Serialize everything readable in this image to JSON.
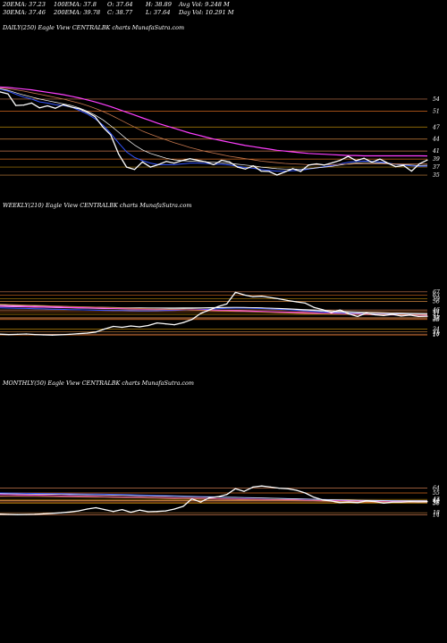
{
  "header": {
    "ema20": "20EMA: 37.23",
    "ema100": "100EMA: 37.8",
    "open": "O: 37.64",
    "high": "H: 38.89",
    "avg_vol": "Avg Vol: 9.248  M",
    "ema30": "30EMA: 37.46",
    "ema200": "200EMA: 39.78",
    "close": "C: 38.77",
    "low": "L: 37.64",
    "day_vol": "Day Vol: 10.291 M"
  },
  "chart_data": [
    {
      "type": "line",
      "title": "DAILY(250) Eagle  View  CENTRALBK charts MunafaSutra.com",
      "ylim": [
        33,
        58
      ],
      "y_ticks": [
        "54",
        "51",
        "47",
        "44",
        "41",
        "39",
        "37",
        "35"
      ],
      "y_tick_values": [
        54,
        51,
        47,
        44,
        41,
        39,
        37,
        35
      ],
      "series": [
        {
          "name": "",
          "color": "#ffffff",
          "values": [
            55.8,
            55.3,
            52.4,
            52.5,
            53.0,
            51.8,
            52.3,
            51.7,
            52.6,
            52.0,
            51.6,
            50.7,
            49.6,
            47.0,
            45.0,
            40.2,
            37.0,
            36.4,
            38.3,
            37.0,
            37.6,
            38.4,
            38.0,
            38.6,
            39.1,
            38.7,
            38.3,
            37.6,
            38.7,
            38.3,
            37.0,
            36.5,
            37.3,
            36.0,
            35.9,
            35.0,
            35.8,
            36.6,
            35.9,
            37.5,
            37.8,
            37.5,
            38.1,
            38.7,
            39.7,
            38.6,
            39.2,
            38.2,
            39.0,
            38.0,
            37.1,
            37.4,
            36.0,
            37.8,
            38.77
          ]
        },
        {
          "name": "",
          "color": "#3355ff",
          "values": [
            56.5,
            56.0,
            55.2,
            54.5,
            54.0,
            53.3,
            53.0,
            52.6,
            52.4,
            52.0,
            51.2,
            50.3,
            49.1,
            47.5,
            45.4,
            43.0,
            40.8,
            39.4,
            38.6,
            38.0,
            37.6,
            37.6,
            37.6,
            37.8,
            38.0,
            38.0,
            37.9,
            37.7,
            37.7,
            37.5,
            37.2,
            36.9,
            36.7,
            36.4,
            36.2,
            36.0,
            36.0,
            36.1,
            36.2,
            36.5,
            36.8,
            37.1,
            37.4,
            37.8,
            38.2,
            38.4,
            38.5,
            38.4,
            38.3,
            38.0,
            37.7,
            37.5,
            37.3,
            37.2,
            37.23
          ]
        },
        {
          "name": "",
          "color": "#ffffff",
          "values": [
            56.6,
            56.2,
            55.6,
            55.0,
            54.5,
            54.0,
            53.6,
            53.2,
            52.8,
            52.4,
            51.8,
            51.0,
            50.0,
            48.8,
            47.3,
            45.7,
            44.0,
            42.5,
            41.3,
            40.4,
            39.8,
            39.2,
            38.8,
            38.6,
            38.5,
            38.4,
            38.3,
            38.2,
            38.1,
            37.9,
            37.7,
            37.5,
            37.3,
            37.0,
            36.8,
            36.6,
            36.5,
            36.5,
            36.5,
            36.6,
            36.8,
            37.0,
            37.2,
            37.5,
            37.8,
            38.0,
            38.1,
            38.1,
            38.0,
            37.9,
            37.7,
            37.6,
            37.5,
            37.4,
            37.46
          ]
        },
        {
          "name": "",
          "color": "#c8784e",
          "values": [
            56.8,
            56.6,
            56.3,
            56.0,
            55.6,
            55.2,
            54.8,
            54.4,
            54.0,
            53.5,
            53.0,
            52.4,
            51.7,
            50.9,
            50.0,
            49.0,
            48.0,
            47.0,
            46.0,
            45.2,
            44.5,
            43.8,
            43.1,
            42.5,
            41.9,
            41.4,
            40.9,
            40.5,
            40.1,
            39.7,
            39.4,
            39.1,
            38.8,
            38.5,
            38.3,
            38.1,
            37.9,
            37.8,
            37.7,
            37.6,
            37.6,
            37.6,
            37.6,
            37.7,
            37.7,
            37.8,
            37.8,
            37.8,
            37.8,
            37.8,
            37.8,
            37.8,
            37.8,
            37.8,
            37.8
          ]
        },
        {
          "name": "",
          "color": "#ff3fff",
          "values": [
            57.0,
            56.9,
            56.7,
            56.5,
            56.3,
            56.0,
            55.7,
            55.4,
            55.1,
            54.7,
            54.3,
            53.8,
            53.3,
            52.7,
            52.1,
            51.4,
            50.7,
            50.0,
            49.3,
            48.6,
            47.9,
            47.3,
            46.7,
            46.1,
            45.5,
            45.0,
            44.5,
            44.0,
            43.6,
            43.2,
            42.8,
            42.4,
            42.1,
            41.8,
            41.5,
            41.2,
            41.0,
            40.8,
            40.6,
            40.4,
            40.3,
            40.2,
            40.1,
            40.0,
            39.9,
            39.9,
            39.8,
            39.8,
            39.8,
            39.8,
            39.8,
            39.8,
            39.8,
            39.8,
            39.78
          ]
        }
      ]
    },
    {
      "type": "line",
      "title": "WEEKLY(210) Eagle  View  CENTRALBK charts MunafaSutra.com",
      "ylim": [
        12,
        72
      ],
      "y_ticks": [
        "67",
        "63",
        "59",
        "56",
        "46",
        "44",
        "41",
        "37",
        "36",
        "35",
        "24",
        "21",
        "18",
        "17"
      ],
      "y_tick_values": [
        67,
        63,
        59,
        56,
        46,
        44,
        41,
        37,
        36,
        35,
        24,
        21,
        18,
        17
      ],
      "series": [
        {
          "name": "",
          "color": "#ffffff",
          "values": [
            18.0,
            17.5,
            17.8,
            18.2,
            17.6,
            17.2,
            17.0,
            17.3,
            17.8,
            18.5,
            19.2,
            20.5,
            24.0,
            27.0,
            26.0,
            27.5,
            26.5,
            28.0,
            31.0,
            30.0,
            29.0,
            31.5,
            35.0,
            42.0,
            46.0,
            50.0,
            53.0,
            66.5,
            63.5,
            61.5,
            62.0,
            60.5,
            59.0,
            57.0,
            55.5,
            54.0,
            49.0,
            46.5,
            43.0,
            46.0,
            41.5,
            38.5,
            42.5,
            40.5,
            39.5,
            41.0,
            39.0,
            40.0,
            38.5,
            38.77
          ]
        },
        {
          "name": "",
          "color": "#3355ff",
          "values": [
            48.5,
            48.2,
            48.0,
            47.8,
            47.5,
            47.3,
            47.0,
            46.8,
            46.5,
            46.2,
            46.0,
            45.7,
            45.5,
            45.4,
            45.3,
            45.1,
            45.0,
            45.0,
            45.1,
            45.3,
            45.5,
            45.8,
            46.0,
            46.5,
            47.0,
            47.5,
            48.0,
            48.2,
            48.2,
            48.0,
            47.7,
            47.3,
            46.8,
            46.2,
            45.6,
            45.0,
            44.4,
            43.8,
            43.2,
            42.8,
            42.4,
            42.0,
            41.8,
            41.6,
            41.5,
            41.4,
            41.3,
            41.2,
            41.2,
            41.2
          ]
        },
        {
          "name": "",
          "color": "#ffffff",
          "values": [
            50.0,
            49.8,
            49.6,
            49.4,
            49.2,
            49.0,
            48.8,
            48.6,
            48.4,
            48.2,
            48.0,
            47.8,
            47.6,
            47.5,
            47.4,
            47.3,
            47.2,
            47.2,
            47.2,
            47.3,
            47.4,
            47.6,
            47.8,
            48.0,
            48.3,
            48.6,
            48.8,
            49.0,
            49.0,
            48.8,
            48.5,
            48.1,
            47.6,
            47.0,
            46.4,
            45.8,
            45.2,
            44.6,
            44.0,
            43.5,
            43.0,
            42.6,
            42.3,
            42.0,
            41.8,
            41.6,
            41.5,
            41.4,
            41.3,
            41.3
          ]
        },
        {
          "name": "",
          "color": "#ffffff",
          "values": [
            51.5,
            51.3,
            51.1,
            50.9,
            50.7,
            50.5,
            50.3,
            50.1,
            49.9,
            49.7,
            49.5,
            49.3,
            49.1,
            48.9,
            48.7,
            48.6,
            48.5,
            48.4,
            48.4,
            48.4,
            48.4,
            48.5,
            48.6,
            48.7,
            48.8,
            48.9,
            49.0,
            49.0,
            48.9,
            48.7,
            48.5,
            48.2,
            47.9,
            47.5,
            47.1,
            46.6,
            46.1,
            45.6,
            45.1,
            44.6,
            44.2,
            43.8,
            43.4,
            43.1,
            42.8,
            42.5,
            42.3,
            42.1,
            42.0,
            41.9
          ]
        },
        {
          "name": "",
          "color": "#ff3fff",
          "values": [
            50.5,
            50.3,
            50.1,
            49.9,
            49.7,
            49.5,
            49.3,
            49.1,
            48.9,
            48.7,
            48.5,
            48.3,
            48.1,
            47.9,
            47.7,
            47.5,
            47.3,
            47.1,
            46.9,
            46.7,
            46.5,
            46.3,
            46.1,
            45.9,
            45.7,
            45.5,
            45.3,
            45.1,
            44.9,
            44.6,
            44.3,
            44.0,
            43.7,
            43.4,
            43.1,
            42.8,
            42.5,
            42.2,
            41.9,
            41.6,
            41.3,
            41.1,
            40.9,
            40.7,
            40.5,
            40.4,
            40.3,
            40.2,
            40.1,
            40.0
          ]
        },
        {
          "name": "",
          "color": "#c8784e",
          "values": [
            52.5,
            52.2,
            51.9,
            51.6,
            51.3,
            51.0,
            50.7,
            50.4,
            50.1,
            49.8,
            49.5,
            49.2,
            48.9,
            48.6,
            48.3,
            48.0,
            47.7,
            47.4,
            47.1,
            46.8,
            46.5,
            46.2,
            45.9,
            45.6,
            45.3,
            45.0,
            44.7,
            44.4,
            44.1,
            43.8,
            43.5,
            43.2,
            42.9,
            42.6,
            42.3,
            42.0,
            41.8,
            41.6,
            41.4,
            41.2,
            41.0,
            40.9,
            40.8,
            40.7,
            40.6,
            40.5,
            40.4,
            40.3,
            40.2,
            40.1
          ]
        }
      ]
    },
    {
      "type": "line",
      "title": "MONTHLY(50) Eagle  View  CENTRALBK charts MunafaSutra.com",
      "ylim": [
        10,
        100
      ],
      "y_ticks": [
        "64",
        "55",
        "43",
        "41",
        "40",
        "37",
        "36",
        "18",
        "14"
      ],
      "y_tick_values": [
        64,
        55,
        43,
        41,
        40,
        37,
        36,
        18,
        14
      ],
      "series": [
        {
          "name": "",
          "color": "#ffffff",
          "values": [
            15.5,
            15.0,
            14.5,
            14.8,
            15.2,
            16.0,
            17.0,
            18.0,
            19.5,
            21.5,
            25.0,
            27.5,
            24.0,
            20.5,
            24.0,
            19.0,
            23.0,
            20.0,
            20.5,
            21.5,
            25.0,
            30.0,
            44.0,
            38.0,
            46.0,
            48.0,
            52.0,
            63.0,
            58.0,
            66.0,
            68.0,
            66.0,
            64.0,
            63.0,
            60.0,
            55.0,
            47.0,
            42.0,
            40.0,
            37.0,
            38.0,
            37.0,
            40.0,
            39.0,
            36.0,
            38.0,
            38.0,
            39.0,
            38.5,
            38.77
          ]
        },
        {
          "name": "",
          "color": "#3355ff",
          "values": [
            55.0,
            54.8,
            54.6,
            54.4,
            54.2,
            54.0,
            53.8,
            53.6,
            53.4,
            53.2,
            53.0,
            52.8,
            52.6,
            52.3,
            52.0,
            51.6,
            51.2,
            50.8,
            50.4,
            50.0,
            49.6,
            49.2,
            48.8,
            48.4,
            48.0,
            47.6,
            47.2,
            46.8,
            46.4,
            46.0,
            45.6,
            45.2,
            44.8,
            44.4,
            44.0,
            43.6,
            43.2,
            42.8,
            42.4,
            42.0,
            41.7,
            41.4,
            41.2,
            41.0,
            40.8,
            40.6,
            40.5,
            40.4,
            40.3,
            40.2
          ]
        },
        {
          "name": "",
          "color": "#ffffff",
          "values": [
            53.5,
            53.3,
            53.1,
            52.9,
            52.7,
            52.5,
            52.3,
            52.1,
            51.9,
            51.7,
            51.5,
            51.3,
            51.1,
            50.8,
            50.5,
            50.2,
            49.9,
            49.6,
            49.3,
            49.0,
            48.7,
            48.4,
            48.1,
            47.8,
            47.5,
            47.2,
            46.9,
            46.6,
            46.3,
            46.0,
            45.6,
            45.2,
            44.8,
            44.4,
            44.0,
            43.6,
            43.2,
            42.8,
            42.4,
            42.0,
            41.6,
            41.3,
            41.0,
            40.8,
            40.6,
            40.4,
            40.3,
            40.2,
            40.1,
            40.0
          ]
        },
        {
          "name": "",
          "color": "#ff3fff",
          "values": [
            52.0,
            51.7,
            51.4,
            51.1,
            50.8,
            50.5,
            50.2,
            49.9,
            49.6,
            49.3,
            49.0,
            48.7,
            48.4,
            48.1,
            47.8,
            47.5,
            47.2,
            46.9,
            46.6,
            46.3,
            46.0,
            45.7,
            45.4,
            45.1,
            44.8,
            44.5,
            44.2,
            43.9,
            43.6,
            43.3,
            43.0,
            42.7,
            42.4,
            42.1,
            41.8,
            41.5,
            41.2,
            40.9,
            40.6,
            40.3,
            40.0,
            39.8,
            39.6,
            39.4,
            39.2,
            39.0,
            38.9,
            38.8,
            38.7,
            38.6
          ]
        },
        {
          "name": "",
          "color": "#c8784e",
          "values": [
            49.0,
            48.9,
            48.8,
            48.7,
            48.6,
            48.5,
            48.3,
            48.1,
            47.9,
            47.7,
            47.5,
            47.3,
            47.1,
            46.9,
            46.7,
            46.4,
            46.1,
            45.8,
            45.5,
            45.2,
            44.9,
            44.6,
            44.3,
            44.0,
            43.7,
            43.4,
            43.1,
            42.8,
            42.5,
            42.2,
            41.9,
            41.6,
            41.3,
            41.0,
            40.7,
            40.4,
            40.1,
            39.8,
            39.5,
            39.2,
            38.9,
            38.7,
            38.5,
            38.3,
            38.1,
            37.9,
            37.8,
            37.7,
            37.6,
            37.5
          ]
        }
      ]
    }
  ]
}
